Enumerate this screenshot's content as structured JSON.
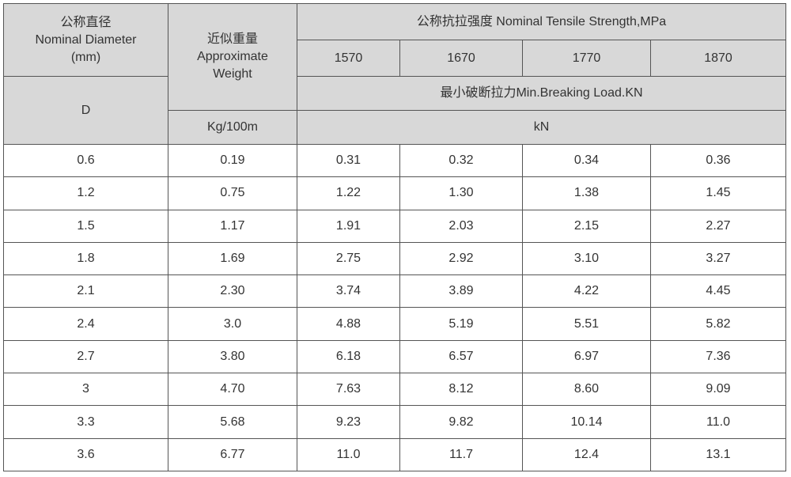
{
  "header": {
    "diameter_label": [
      "公称直径",
      "Nominal Diameter",
      "(mm)"
    ],
    "weight_label": [
      "近似重量",
      "Approximate",
      "Weight"
    ],
    "strength_label": "公称抗拉强度  Nominal Tensile Strength,MPa",
    "grades": [
      "1570",
      "1670",
      "1770",
      "1870"
    ],
    "load_label": "最小破断拉力Min.Breaking Load.KN",
    "d_label": "D",
    "weight_unit": "Kg/100m",
    "load_unit": "kN"
  },
  "table": {
    "rows": [
      [
        "0.6",
        "0.19",
        "0.31",
        "0.32",
        "0.34",
        "0.36"
      ],
      [
        "1.2",
        "0.75",
        "1.22",
        "1.30",
        "1.38",
        "1.45"
      ],
      [
        "1.5",
        "1.17",
        "1.91",
        "2.03",
        "2.15",
        "2.27"
      ],
      [
        "1.8",
        "1.69",
        "2.75",
        "2.92",
        "3.10",
        "3.27"
      ],
      [
        "2.1",
        "2.30",
        "3.74",
        "3.89",
        "4.22",
        "4.45"
      ],
      [
        "2.4",
        "3.0",
        "4.88",
        "5.19",
        "5.51",
        "5.82"
      ],
      [
        "2.7",
        "3.80",
        "6.18",
        "6.57",
        "6.97",
        "7.36"
      ],
      [
        "3",
        "4.70",
        "7.63",
        "8.12",
        "8.60",
        "9.09"
      ],
      [
        "3.3",
        "5.68",
        "9.23",
        "9.82",
        "10.14",
        "11.0"
      ],
      [
        "3.6",
        "6.77",
        "11.0",
        "11.7",
        "12.4",
        "13.1"
      ]
    ]
  }
}
